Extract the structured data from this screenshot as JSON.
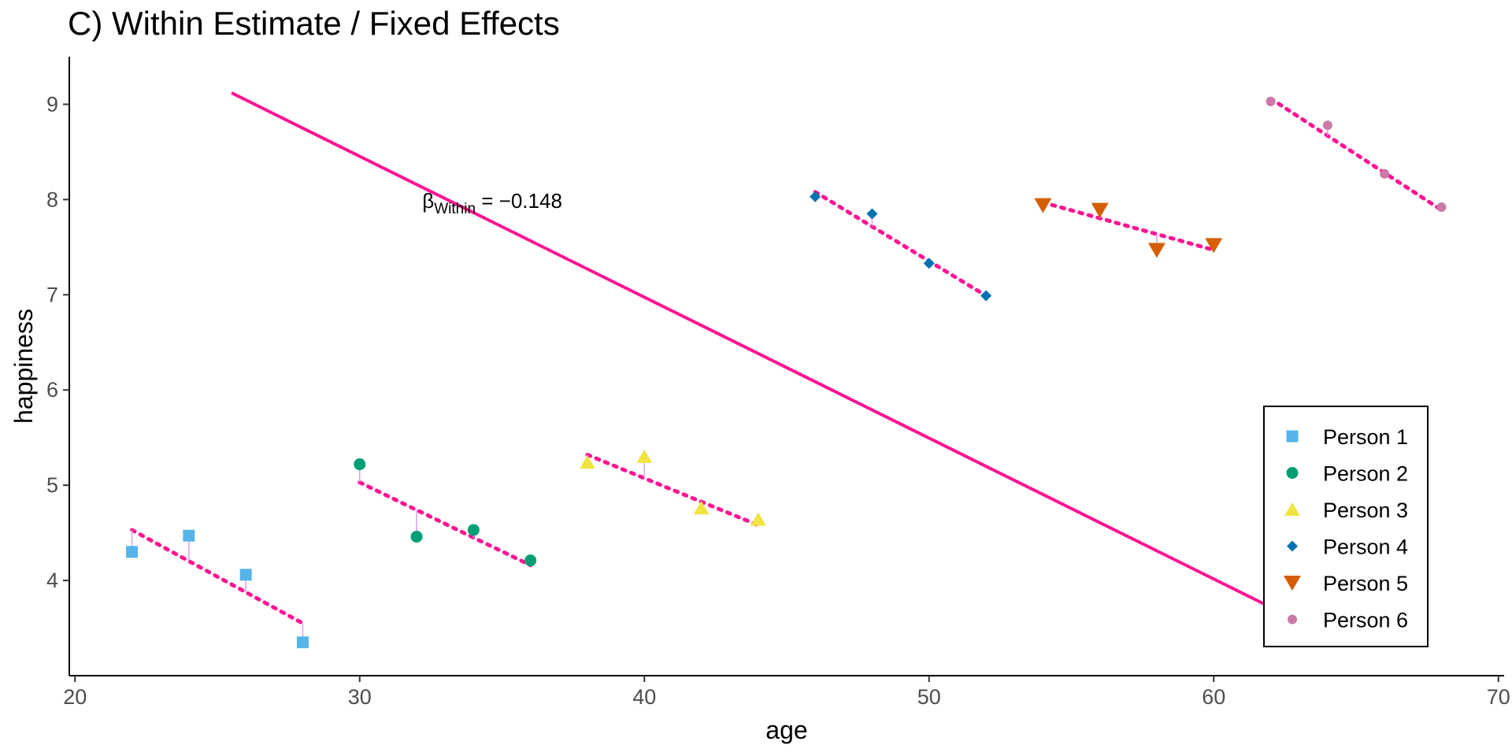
{
  "chart_data": {
    "type": "scatter",
    "title": "C) Within Estimate / Fixed Effects",
    "xlabel": "age",
    "ylabel": "happiness",
    "xlim": [
      19.8,
      70.2
    ],
    "ylim": [
      3.0,
      9.5
    ],
    "x_ticks": [
      20,
      30,
      40,
      50,
      60,
      70
    ],
    "y_ticks": [
      4,
      5,
      6,
      7,
      8,
      9
    ],
    "grid": false,
    "legend_position": "bottom-right",
    "series": [
      {
        "name": "Person 1",
        "color": "#56B4E9",
        "marker": "square",
        "x": [
          22,
          24,
          26,
          28
        ],
        "y": [
          4.3,
          4.47,
          4.06,
          3.35
        ],
        "fit": [
          [
            22,
            4.53
          ],
          [
            28,
            3.55
          ]
        ]
      },
      {
        "name": "Person 2",
        "color": "#009E73",
        "marker": "circle",
        "x": [
          30,
          32,
          34,
          36
        ],
        "y": [
          5.22,
          4.46,
          4.53,
          4.21
        ],
        "fit": [
          [
            30,
            5.03
          ],
          [
            36,
            4.16
          ]
        ]
      },
      {
        "name": "Person 3",
        "color": "#F0E442",
        "marker": "triangle-up",
        "x": [
          38,
          40,
          42,
          44
        ],
        "y": [
          5.24,
          5.3,
          4.76,
          4.64
        ],
        "fit": [
          [
            38,
            5.32
          ],
          [
            44,
            4.58
          ]
        ]
      },
      {
        "name": "Person 4",
        "color": "#0072B2",
        "marker": "diamond",
        "x": [
          46,
          48,
          50,
          52
        ],
        "y": [
          8.03,
          7.85,
          7.33,
          6.99
        ],
        "fit": [
          [
            46,
            8.08
          ],
          [
            52,
            6.99
          ]
        ]
      },
      {
        "name": "Person 5",
        "color": "#D55E00",
        "marker": "triangle-down",
        "x": [
          54,
          56,
          58,
          60
        ],
        "y": [
          7.94,
          7.89,
          7.47,
          7.52
        ],
        "fit": [
          [
            54,
            7.97
          ],
          [
            60,
            7.47
          ]
        ]
      },
      {
        "name": "Person 6",
        "color": "#CC79A7",
        "marker": "circle-small",
        "x": [
          62,
          64,
          66,
          68
        ],
        "y": [
          9.03,
          8.78,
          8.27,
          7.92
        ],
        "fit": [
          [
            62,
            9.06
          ],
          [
            68,
            7.89
          ]
        ]
      }
    ],
    "overall_line": {
      "color": "#FF1493",
      "from": [
        25.5,
        9.12
      ],
      "to": [
        62.4,
        3.66
      ]
    },
    "annotation": {
      "symbol": "β",
      "subscript": "Within",
      "text": " = −0.148",
      "x": 32.2,
      "y": 7.98
    }
  }
}
